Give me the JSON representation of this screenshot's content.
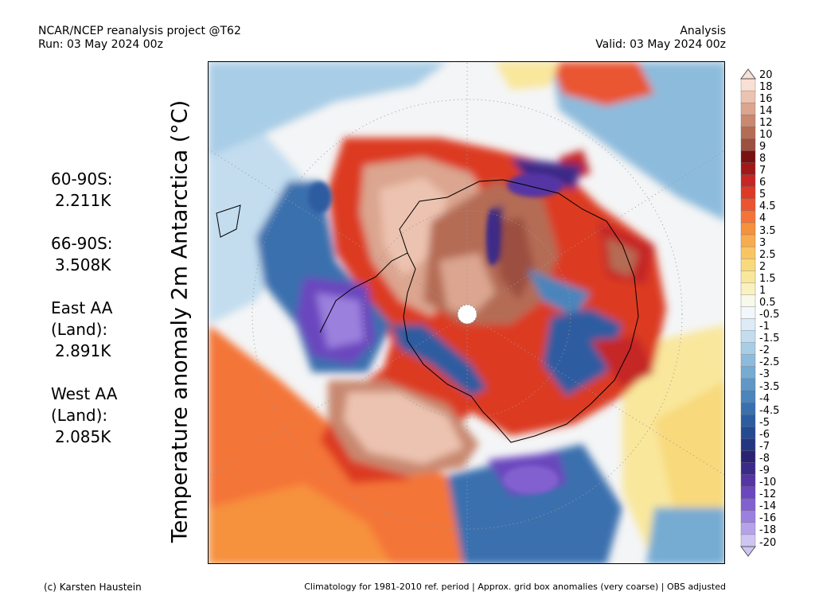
{
  "header": {
    "left_line1": "NCAR/NCEP reanalysis project @T62",
    "left_line2": "Run: 03 May 2024 00z",
    "right_line1": "Analysis",
    "right_line2": "Valid: 03 May 2024 00z"
  },
  "title": "Temperature anomaly 2m Antarctica (°C)",
  "stats": [
    {
      "label": "60-90S:",
      "value": "2.211K"
    },
    {
      "label": "66-90S:",
      "value": "3.508K"
    },
    {
      "label": "East AA (Land):",
      "value": "2.891K"
    },
    {
      "label": "West AA (Land):",
      "value": "2.085K"
    }
  ],
  "colorbar": {
    "labels": [
      "20",
      "18",
      "16",
      "14",
      "12",
      "10",
      "9",
      "8",
      "7",
      "6",
      "5",
      "4.5",
      "4",
      "3.5",
      "3",
      "2.5",
      "2",
      "1.5",
      "1",
      "0.5",
      "-0.5",
      "-1",
      "-1.5",
      "-2",
      "-2.5",
      "-3",
      "-3.5",
      "-4",
      "-4.5",
      "-5",
      "-6",
      "-7",
      "-8",
      "-9",
      "-10",
      "-12",
      "-14",
      "-16",
      "-18",
      "-20"
    ],
    "colors": [
      "#f9e0d4",
      "#ecc3b0",
      "#dba58f",
      "#c98870",
      "#b56c55",
      "#9c5040",
      "#7a1010",
      "#a01818",
      "#c52626",
      "#dc3a24",
      "#ea5530",
      "#f47438",
      "#f6913e",
      "#f8ac4f",
      "#f9c563",
      "#f8d97c",
      "#f9e79c",
      "#faf1c0",
      "#f9f9ea",
      "#f2f7fb",
      "#dcebf6",
      "#c3ddef",
      "#a8cde6",
      "#8dbbdc",
      "#76abd2",
      "#5f98c7",
      "#4a85bb",
      "#3a70ae",
      "#2d5ca0",
      "#244a91",
      "#223682",
      "#2a2272",
      "#3c2a88",
      "#5534a4",
      "#6b46be",
      "#8260cf",
      "#9c80de",
      "#b6a2ea",
      "#cfc5f3"
    ]
  },
  "footer": {
    "left": "(c) Karsten Haustein",
    "right": "Climatology for 1981-2010 ref. period | Approx. grid box anomalies (very coarse) | OBS adjusted"
  }
}
